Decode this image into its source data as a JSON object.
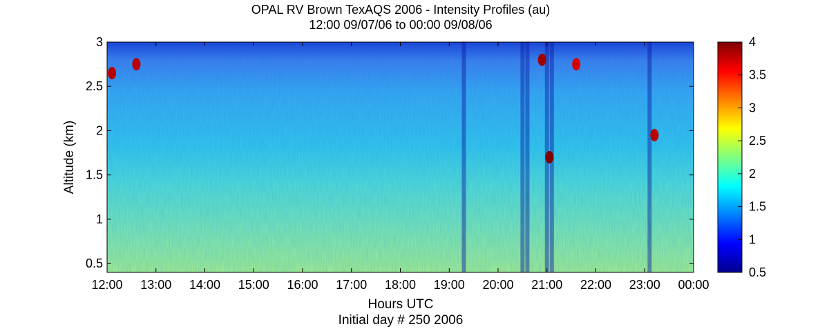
{
  "chart_data": {
    "type": "heatmap",
    "title": "OPAL RV Brown TexAQS 2006 - Intensity Profiles (au)",
    "subtitle": "12:00 09/07/06 to 00:00 09/08/06",
    "xlabel": "Hours UTC",
    "xlabel2": "Initial day # 250  2006",
    "ylabel": "Altitude (km)",
    "x_ticks": [
      "12:00",
      "13:00",
      "14:00",
      "15:00",
      "16:00",
      "17:00",
      "18:00",
      "19:00",
      "20:00",
      "21:00",
      "22:00",
      "23:00",
      "00:00"
    ],
    "x_range_hours": [
      12,
      24
    ],
    "y_ticks": [
      "0.5",
      "1",
      "1.5",
      "2",
      "2.5",
      "3"
    ],
    "y_range_km": [
      0.4,
      3
    ],
    "colorbar_ticks": [
      "0.5",
      "1",
      "1.5",
      "2",
      "2.5",
      "3",
      "3.5",
      "4"
    ],
    "color_range": [
      0.5,
      4
    ],
    "colormap": "jet",
    "bands": [
      {
        "from_km": 0.4,
        "to_km": 1.2,
        "approx_value": 2.3
      },
      {
        "from_km": 1.2,
        "to_km": 1.8,
        "approx_value": 2.0
      },
      {
        "from_km": 1.8,
        "to_km": 2.7,
        "approx_value": 1.7
      },
      {
        "from_km": 2.7,
        "to_km": 3.0,
        "approx_value": 1.2
      }
    ],
    "dark_columns_hours": [
      19.3,
      20.5,
      20.6,
      21.0,
      21.1,
      23.1
    ],
    "cloud_features": [
      {
        "hour": 12.1,
        "alt_km": 2.65,
        "value": 3.8
      },
      {
        "hour": 12.6,
        "alt_km": 2.75,
        "value": 3.8
      },
      {
        "hour": 20.9,
        "alt_km": 2.8,
        "value": 3.9
      },
      {
        "hour": 21.05,
        "alt_km": 1.7,
        "value": 4.0
      },
      {
        "hour": 21.6,
        "alt_km": 2.75,
        "value": 3.7
      },
      {
        "hour": 23.2,
        "alt_km": 1.95,
        "value": 3.8
      }
    ],
    "grid": false
  }
}
